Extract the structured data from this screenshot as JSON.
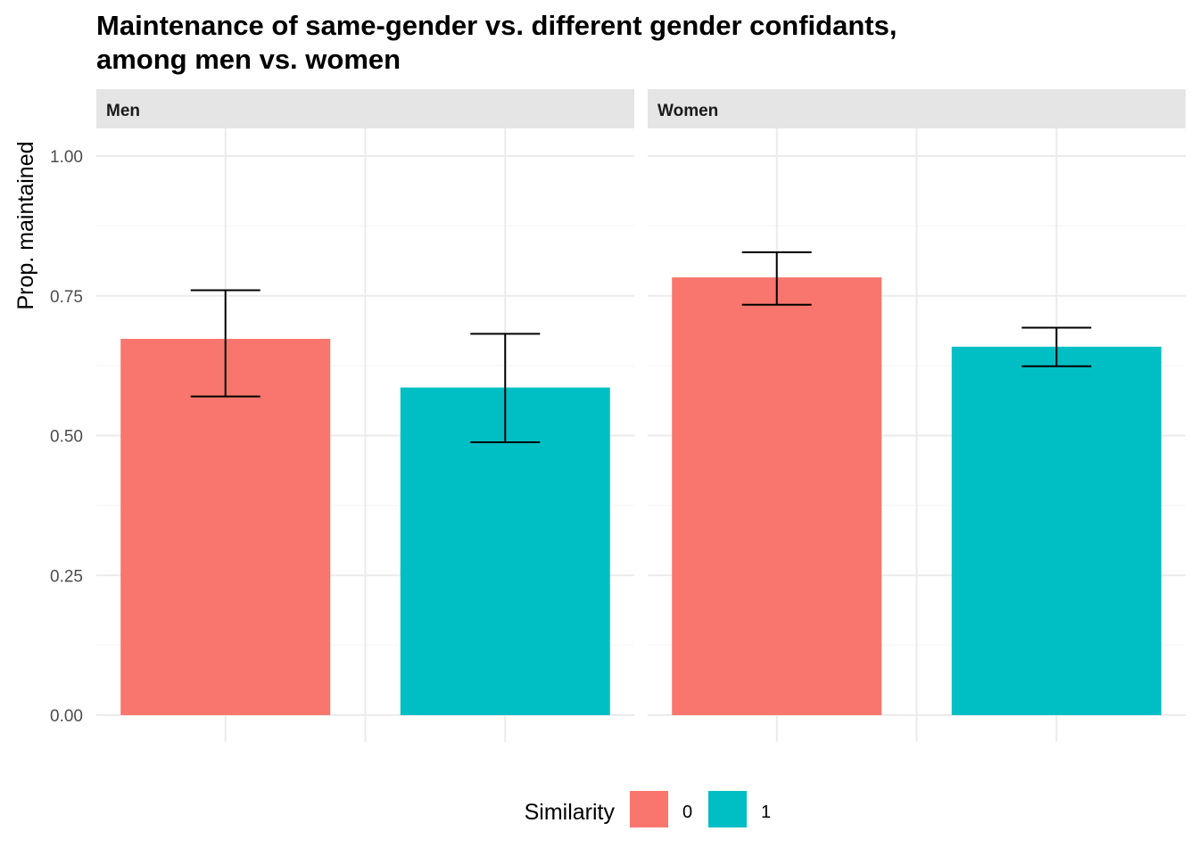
{
  "chart_data": {
    "type": "bar",
    "title_lines": [
      "Maintenance of same-gender vs. different gender confidants,",
      "among men vs. women"
    ],
    "xlabel": "",
    "ylabel": "Prop. maintained",
    "ylim": [
      0,
      1.05
    ],
    "y_ticks": [
      "0.00",
      "0.25",
      "0.50",
      "0.75",
      "1.00"
    ],
    "grid": true,
    "legend": {
      "title": "Similarity",
      "position": "bottom",
      "entries": [
        {
          "label": "0",
          "color": "#F8766D"
        },
        {
          "label": "1",
          "color": "#00BFC4"
        }
      ]
    },
    "panels": [
      {
        "label": "Men",
        "bars": [
          {
            "similarity": "0",
            "value": 0.673,
            "err_low": 0.57,
            "err_high": 0.76
          },
          {
            "similarity": "1",
            "value": 0.586,
            "err_low": 0.488,
            "err_high": 0.682
          }
        ]
      },
      {
        "label": "Women",
        "bars": [
          {
            "similarity": "0",
            "value": 0.783,
            "err_low": 0.734,
            "err_high": 0.828
          },
          {
            "similarity": "1",
            "value": 0.659,
            "err_low": 0.624,
            "err_high": 0.693
          }
        ]
      }
    ]
  }
}
